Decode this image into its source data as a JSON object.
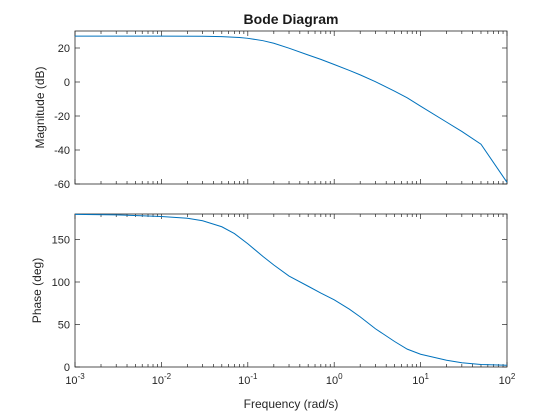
{
  "chart_data": [
    {
      "type": "line",
      "title": "Bode Diagram",
      "ylabel": "Magnitude (dB)",
      "xlabel": "",
      "xscale": "log",
      "xlim": [
        0.001,
        100
      ],
      "ylim": [
        -60,
        30
      ],
      "yticks": [
        "20",
        "0",
        "-20",
        "-40",
        "-60"
      ],
      "grid": false,
      "line_color": "#0072BD",
      "series": [
        {
          "x": [
            0.001,
            0.003,
            0.01,
            0.03,
            0.05,
            0.08,
            0.1,
            0.15,
            0.2,
            0.3,
            0.5,
            0.7,
            1,
            1.5,
            2,
            3,
            5,
            7,
            10,
            20,
            30,
            50,
            100
          ],
          "values": [
            27,
            27,
            27,
            26.9,
            26.7,
            26.2,
            25.7,
            24.3,
            22.8,
            19.9,
            15.9,
            13.3,
            10.3,
            6.8,
            4.2,
            0.2,
            -5.4,
            -9.3,
            -14.2,
            -23.6,
            -29.1,
            -36.6,
            -59
          ]
        }
      ]
    },
    {
      "type": "line",
      "title": "",
      "ylabel": "Phase (deg)",
      "xlabel": "Frequency (rad/s)",
      "xscale": "log",
      "xlim": [
        0.001,
        100
      ],
      "ylim": [
        0,
        180
      ],
      "yticks": [
        "0",
        "50",
        "100",
        "150"
      ],
      "xticks": [
        {
          "base": "10",
          "exp": "-3"
        },
        {
          "base": "10",
          "exp": "-2"
        },
        {
          "base": "10",
          "exp": "-1"
        },
        {
          "base": "10",
          "exp": "0"
        },
        {
          "base": "10",
          "exp": "1"
        },
        {
          "base": "10",
          "exp": "2"
        }
      ],
      "grid": false,
      "line_color": "#0072BD",
      "series": [
        {
          "x": [
            0.001,
            0.003,
            0.01,
            0.02,
            0.03,
            0.05,
            0.07,
            0.1,
            0.15,
            0.2,
            0.3,
            0.5,
            0.7,
            1,
            1.5,
            2,
            3,
            5,
            7,
            10,
            20,
            30,
            50,
            100
          ],
          "values": [
            179.5,
            179,
            177,
            175,
            172,
            165,
            157,
            145,
            130,
            120,
            107,
            95,
            87,
            79,
            68,
            59,
            45,
            30,
            21,
            15,
            8,
            5,
            3,
            2
          ]
        }
      ]
    }
  ]
}
